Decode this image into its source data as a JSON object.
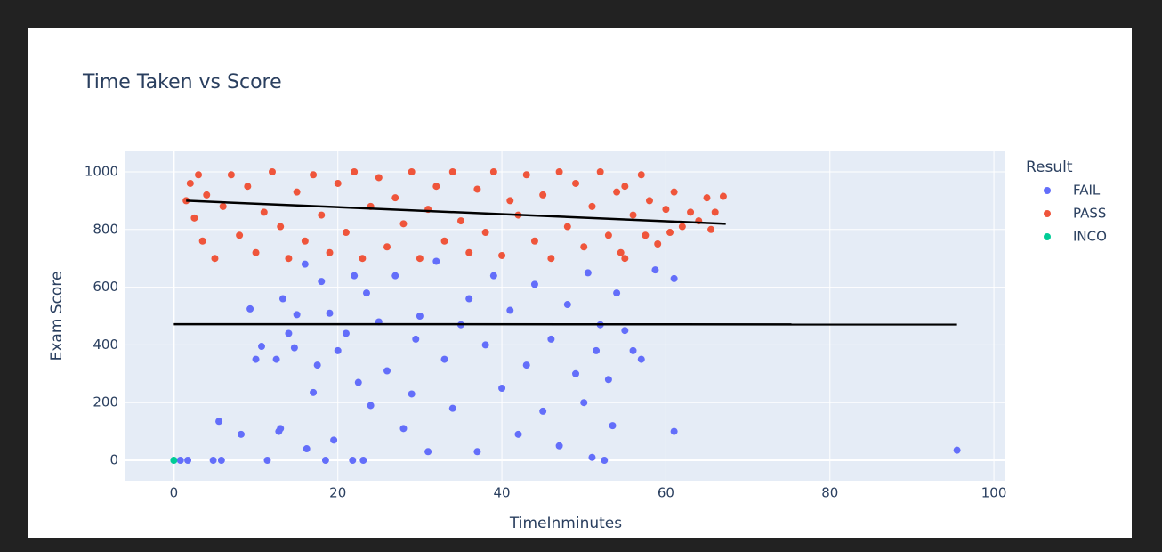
{
  "chart_data": {
    "type": "scatter",
    "title": "Time Taken vs Score",
    "x_label": "TimeInminutes",
    "y_label": "Exam Score",
    "legend_title": "Result",
    "legend_position": "right",
    "grid": true,
    "xlim": [
      -5.9,
      101.4
    ],
    "ylim": [
      -71,
      1071
    ],
    "xticks": [
      0,
      20,
      40,
      60,
      80,
      100
    ],
    "yticks": [
      0,
      200,
      400,
      600,
      800,
      1000
    ],
    "series": [
      {
        "name": "FAIL",
        "color": "#636efa",
        "x": [
          0.8,
          1.7,
          4.8,
          5.8,
          5.5,
          8.2,
          9.3,
          10,
          10.7,
          11.4,
          12.8,
          13,
          12.5,
          13.3,
          14,
          14.7,
          15,
          16,
          16.2,
          17,
          17.5,
          18,
          18.5,
          19,
          19.5,
          20,
          21,
          21.8,
          22,
          22.5,
          23.1,
          23.5,
          24,
          25,
          26,
          27,
          28,
          29,
          29.5,
          30,
          31,
          32,
          33,
          34,
          35,
          36,
          37,
          38,
          39,
          40,
          41,
          42,
          43,
          44,
          45,
          46,
          47,
          48,
          49,
          50,
          50.5,
          51,
          51.5,
          52,
          52.5,
          53,
          53.5,
          54,
          55,
          56,
          57,
          58.7,
          61,
          61,
          95.5
        ],
        "values": [
          0,
          0,
          0,
          0,
          135,
          90,
          525,
          350,
          395,
          0,
          100,
          110,
          350,
          560,
          440,
          390,
          505,
          680,
          40,
          235,
          330,
          620,
          0,
          510,
          70,
          380,
          440,
          0,
          640,
          270,
          0,
          580,
          190,
          480,
          310,
          640,
          110,
          230,
          420,
          500,
          30,
          690,
          350,
          180,
          470,
          560,
          30,
          400,
          640,
          250,
          520,
          90,
          330,
          610,
          170,
          420,
          50,
          540,
          300,
          200,
          650,
          10,
          380,
          470,
          0,
          280,
          120,
          580,
          450,
          380,
          350,
          660,
          630,
          100,
          35
        ],
        "trendline": {
          "x": [
            0,
            95.5
          ],
          "values": [
            472,
            471
          ]
        }
      },
      {
        "name": "PASS",
        "color": "#ef553b",
        "x": [
          1.5,
          2,
          2.5,
          3,
          3.5,
          4,
          5,
          6,
          7,
          8,
          9,
          10,
          11,
          12,
          13,
          14,
          15,
          16,
          17,
          18,
          19,
          20,
          21,
          22,
          23,
          24,
          25,
          26,
          27,
          28,
          29,
          30,
          31,
          32,
          33,
          34,
          35,
          36,
          37,
          38,
          39,
          40,
          41,
          42,
          43,
          44,
          45,
          46,
          47,
          48,
          49,
          50,
          51,
          52,
          53,
          54,
          55,
          56,
          57,
          57.5,
          58,
          59,
          60,
          61,
          62,
          63,
          64,
          65,
          65.5,
          66,
          67,
          55,
          60.5,
          54.5
        ],
        "values": [
          900,
          960,
          840,
          990,
          760,
          920,
          700,
          880,
          990,
          780,
          950,
          720,
          860,
          1000,
          810,
          700,
          930,
          760,
          990,
          850,
          720,
          960,
          790,
          1000,
          700,
          880,
          980,
          740,
          910,
          820,
          1000,
          700,
          870,
          950,
          760,
          1000,
          830,
          720,
          940,
          790,
          1000,
          710,
          900,
          850,
          990,
          760,
          920,
          700,
          1000,
          810,
          960,
          740,
          880,
          1000,
          780,
          930,
          700,
          850,
          990,
          780,
          900,
          750,
          870,
          930,
          810,
          860,
          830,
          910,
          800,
          860,
          915,
          950,
          790,
          720
        ],
        "trendline": {
          "x": [
            1.5,
            67.3
          ],
          "values": [
            900,
            820
          ]
        }
      },
      {
        "name": "INCO",
        "color": "#00cc96",
        "x": [
          0
        ],
        "values": [
          0
        ]
      }
    ]
  }
}
